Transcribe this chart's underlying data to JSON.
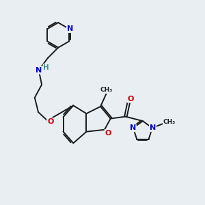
{
  "bg_color": "#e8eef2",
  "bond_color": "#1a1a1a",
  "bond_width": 1.4,
  "N_color": "#0000cc",
  "O_color": "#cc0000",
  "H_color": "#4a9090",
  "figsize": [
    3.0,
    3.0
  ],
  "dpi": 100,
  "xlim": [
    0,
    10
  ],
  "ylim": [
    0,
    10
  ]
}
